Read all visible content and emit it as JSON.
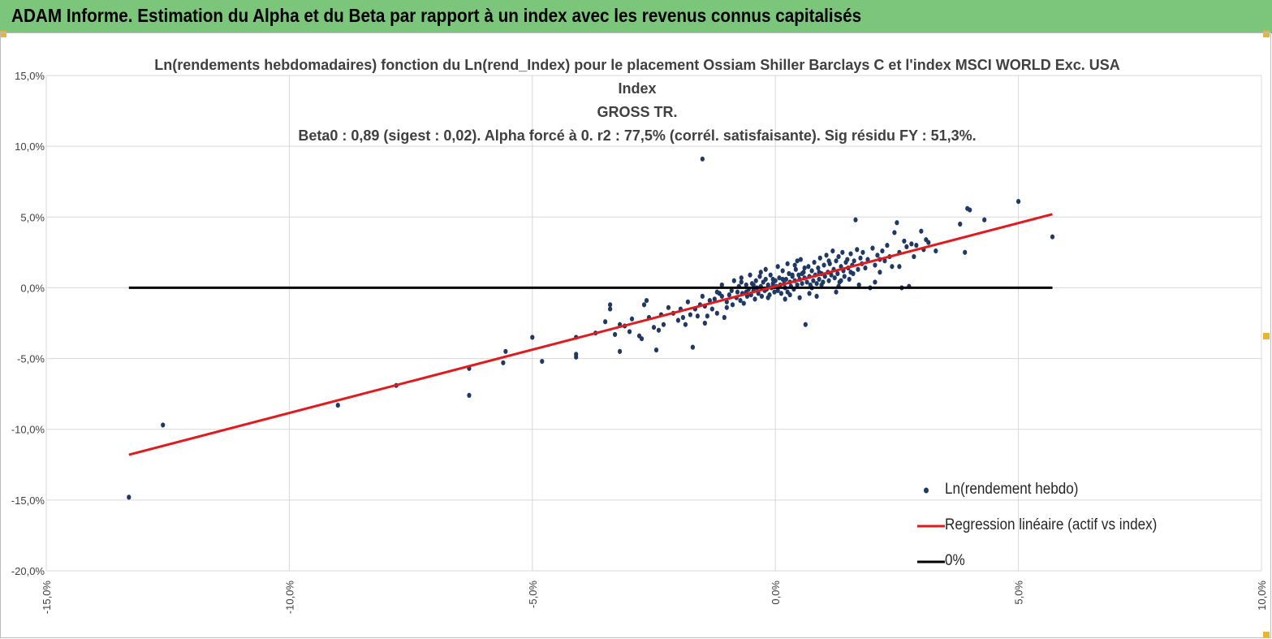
{
  "header": {
    "title": "ADAM Informe. Estimation du Alpha et du Beta par rapport à un index avec les revenus connus capitalisés",
    "banner_color": "#7cc67c"
  },
  "chart_data": {
    "type": "scatter",
    "title_lines": [
      "Ln(rendements hebdomadaires) fonction du Ln(rend_Index) pour le placement Ossiam Shiller Barclays C et l'index MSCI WORLD Exc. USA Index",
      "GROSS TR.",
      "Beta0 : 0,89  (sigest : 0,02).  Alpha forcé à 0. r2 : 77,5% (corrél. satisfaisante). Sig résidu FY : 51,3%."
    ],
    "xlim": [
      -15,
      10
    ],
    "ylim": [
      -20,
      15
    ],
    "x_ticks": [
      -15,
      -10,
      -5,
      0,
      5,
      10
    ],
    "y_ticks": [
      15,
      10,
      5,
      0,
      -5,
      -10,
      -15,
      -20
    ],
    "x_tick_labels": [
      "-15,0%",
      "-10,0%",
      "-5,0%",
      "0,0%",
      "5,0%",
      "10,0%"
    ],
    "y_tick_labels": [
      "15,0%",
      "10,0%",
      "5,0%",
      "0,0%",
      "-5,0%",
      "-10,0%",
      "-15,0%",
      "-20,0%"
    ],
    "grid": true,
    "legend_position": "bottom-right",
    "series": [
      {
        "name": "Ln(rendement hebdo)",
        "kind": "scatter",
        "color": "#1f3864",
        "points": [
          [
            -13.3,
            -14.8
          ],
          [
            -12.6,
            -9.7
          ],
          [
            -9.0,
            -8.3
          ],
          [
            -7.8,
            -6.9
          ],
          [
            -6.3,
            -5.7
          ],
          [
            -6.3,
            -7.6
          ],
          [
            -5.6,
            -5.3
          ],
          [
            -5.55,
            -4.5
          ],
          [
            -5.0,
            -3.5
          ],
          [
            -4.8,
            -5.2
          ],
          [
            -4.1,
            -4.9
          ],
          [
            -4.1,
            -4.7
          ],
          [
            -4.1,
            -3.5
          ],
          [
            -3.7,
            -3.2
          ],
          [
            -3.5,
            -2.4
          ],
          [
            -3.4,
            -1.5
          ],
          [
            -3.4,
            -1.2
          ],
          [
            -3.3,
            -3.3
          ],
          [
            -3.2,
            -2.6
          ],
          [
            -3.1,
            -2.7
          ],
          [
            -3.2,
            -4.5
          ],
          [
            -3.0,
            -3.1
          ],
          [
            -2.95,
            -2.2
          ],
          [
            -2.8,
            -3.4
          ],
          [
            -2.75,
            -3.6
          ],
          [
            -2.7,
            -1.2
          ],
          [
            -2.65,
            -0.9
          ],
          [
            -2.6,
            -2.1
          ],
          [
            -2.5,
            -2.8
          ],
          [
            -2.45,
            -4.4
          ],
          [
            -2.4,
            -3.0
          ],
          [
            -2.35,
            -1.9
          ],
          [
            -2.3,
            -2.6
          ],
          [
            -2.2,
            -1.4
          ],
          [
            -2.1,
            -1.8
          ],
          [
            -2.0,
            -2.3
          ],
          [
            -1.95,
            -1.5
          ],
          [
            -1.9,
            -2.1
          ],
          [
            -1.85,
            -2.6
          ],
          [
            -1.8,
            -1.0
          ],
          [
            -1.75,
            -1.9
          ],
          [
            -1.7,
            -4.2
          ],
          [
            -1.65,
            -1.5
          ],
          [
            -1.6,
            -2.0
          ],
          [
            -1.55,
            -1.2
          ],
          [
            -1.5,
            -0.6
          ],
          [
            -1.45,
            -1.3
          ],
          [
            -1.4,
            -2.0
          ],
          [
            -1.35,
            -0.9
          ],
          [
            -1.3,
            -1.5
          ],
          [
            -1.25,
            -0.8
          ],
          [
            -1.2,
            -1.8
          ],
          [
            -1.15,
            -0.4
          ],
          [
            -1.1,
            -0.6
          ],
          [
            -1.05,
            -2.1
          ],
          [
            -1.0,
            -1.0
          ],
          [
            -1.5,
            9.1
          ],
          [
            -1.45,
            -2.5
          ],
          [
            -1.2,
            -0.3
          ],
          [
            -1.1,
            0.2
          ],
          [
            -1.0,
            -1.4
          ],
          [
            -0.95,
            -0.5
          ],
          [
            -0.9,
            -0.2
          ],
          [
            -0.88,
            -1.2
          ],
          [
            -0.85,
            0.5
          ],
          [
            -0.8,
            -0.7
          ],
          [
            -0.78,
            -0.3
          ],
          [
            -0.75,
            0.1
          ],
          [
            -0.72,
            -0.9
          ],
          [
            -0.7,
            0.7
          ],
          [
            -0.68,
            -0.4
          ],
          [
            -0.65,
            -1.1
          ],
          [
            -0.6,
            0.2
          ],
          [
            -0.58,
            -0.6
          ],
          [
            -0.55,
            -0.1
          ],
          [
            -0.52,
            0.9
          ],
          [
            -0.5,
            -0.5
          ],
          [
            -0.48,
            0.3
          ],
          [
            -0.45,
            -0.2
          ],
          [
            -0.42,
            -0.8
          ],
          [
            -0.4,
            0.5
          ],
          [
            -0.38,
            0.0
          ],
          [
            -0.35,
            -0.4
          ],
          [
            -0.32,
            0.8
          ],
          [
            -0.3,
            0.1
          ],
          [
            -0.28,
            -0.6
          ],
          [
            -0.25,
            0.4
          ],
          [
            -0.22,
            -0.2
          ],
          [
            -0.2,
            0.6
          ],
          [
            -0.18,
            -0.1
          ],
          [
            -0.15,
            0.2
          ],
          [
            -0.12,
            -0.5
          ],
          [
            -0.1,
            0.9
          ],
          [
            -0.08,
            0.0
          ],
          [
            -0.05,
            0.3
          ],
          [
            -0.02,
            -0.3
          ],
          [
            0.0,
            0.5
          ],
          [
            0.02,
            0.1
          ],
          [
            0.05,
            -0.2
          ],
          [
            0.08,
            0.7
          ],
          [
            0.1,
            0.2
          ],
          [
            0.12,
            -0.4
          ],
          [
            0.15,
            1.2
          ],
          [
            0.18,
            0.3
          ],
          [
            0.2,
            0.0
          ],
          [
            0.22,
            0.6
          ],
          [
            0.25,
            -0.3
          ],
          [
            0.28,
            1.0
          ],
          [
            0.3,
            0.4
          ],
          [
            0.32,
            0.1
          ],
          [
            0.35,
            0.8
          ],
          [
            0.38,
            -0.1
          ],
          [
            0.4,
            0.5
          ],
          [
            0.42,
            1.3
          ],
          [
            0.45,
            0.2
          ],
          [
            0.48,
            0.9
          ],
          [
            0.5,
            0.6
          ],
          [
            0.52,
            2.0
          ],
          [
            0.55,
            0.3
          ],
          [
            0.58,
            1.1
          ],
          [
            0.6,
            0.7
          ],
          [
            0.62,
            -2.6
          ],
          [
            0.65,
            0.4
          ],
          [
            0.68,
            1.5
          ],
          [
            0.7,
            0.8
          ],
          [
            0.72,
            0.2
          ],
          [
            0.75,
            1.2
          ],
          [
            0.78,
            0.5
          ],
          [
            0.8,
            1.8
          ],
          [
            0.82,
            0.9
          ],
          [
            0.85,
            0.3
          ],
          [
            0.88,
            1.4
          ],
          [
            0.9,
            0.6
          ],
          [
            0.92,
            2.1
          ],
          [
            0.95,
            1.0
          ],
          [
            0.98,
            0.4
          ],
          [
            1.0,
            1.6
          ],
          [
            1.02,
            0.8
          ],
          [
            1.05,
            2.3
          ],
          [
            1.08,
            1.1
          ],
          [
            1.1,
            0.5
          ],
          [
            1.12,
            1.7
          ],
          [
            1.15,
            0.9
          ],
          [
            1.18,
            2.6
          ],
          [
            1.2,
            1.3
          ],
          [
            1.22,
            0.7
          ],
          [
            1.25,
            1.9
          ],
          [
            1.28,
            1.0
          ],
          [
            1.3,
            2.2
          ],
          [
            1.32,
            0.4
          ],
          [
            1.35,
            1.5
          ],
          [
            1.38,
            2.5
          ],
          [
            1.4,
            1.2
          ],
          [
            1.42,
            0.8
          ],
          [
            1.45,
            1.8
          ],
          [
            1.48,
            2.0
          ],
          [
            1.5,
            1.4
          ],
          [
            1.52,
            0.6
          ],
          [
            1.55,
            2.4
          ],
          [
            1.58,
            1.6
          ],
          [
            1.6,
            1.0
          ],
          [
            1.62,
            1.9
          ],
          [
            1.65,
            4.8
          ],
          [
            1.68,
            2.7
          ],
          [
            1.7,
            1.3
          ],
          [
            1.72,
            0.2
          ],
          [
            1.75,
            2.1
          ],
          [
            1.78,
            1.7
          ],
          [
            1.8,
            2.5
          ],
          [
            1.85,
            1.4
          ],
          [
            1.9,
            2.0
          ],
          [
            1.95,
            0.0
          ],
          [
            2.0,
            2.8
          ],
          [
            2.05,
            1.6
          ],
          [
            2.1,
            2.3
          ],
          [
            2.15,
            1.1
          ],
          [
            2.2,
            2.6
          ],
          [
            2.25,
            1.9
          ],
          [
            2.3,
            3.0
          ],
          [
            2.35,
            2.2
          ],
          [
            2.4,
            1.5
          ],
          [
            2.45,
            3.9
          ],
          [
            2.5,
            4.6
          ],
          [
            2.55,
            2.5
          ],
          [
            2.6,
            0.0
          ],
          [
            2.65,
            3.3
          ],
          [
            2.7,
            2.9
          ],
          [
            2.75,
            0.1
          ],
          [
            2.8,
            3.1
          ],
          [
            2.85,
            2.2
          ],
          [
            2.9,
            3.0
          ],
          [
            3.0,
            4.0
          ],
          [
            3.05,
            2.7
          ],
          [
            3.1,
            3.4
          ],
          [
            3.15,
            3.2
          ],
          [
            3.3,
            2.6
          ],
          [
            3.8,
            4.5
          ],
          [
            3.9,
            2.5
          ],
          [
            3.95,
            5.6
          ],
          [
            4.0,
            5.5
          ],
          [
            4.3,
            4.8
          ],
          [
            5.0,
            6.1
          ],
          [
            5.7,
            3.6
          ],
          [
            0.3,
            -0.5
          ],
          [
            0.5,
            -0.7
          ],
          [
            0.7,
            -0.4
          ],
          [
            0.4,
            1.6
          ],
          [
            0.6,
            1.4
          ],
          [
            0.9,
            1.1
          ],
          [
            1.1,
            1.9
          ],
          [
            -0.3,
            1.1
          ],
          [
            -0.2,
            1.3
          ],
          [
            0.05,
            1.5
          ],
          [
            0.25,
            1.7
          ],
          [
            0.45,
            1.9
          ],
          [
            1.3,
            0.1
          ],
          [
            0.85,
            -0.6
          ],
          [
            0.35,
            0.9
          ],
          [
            0.15,
            0.6
          ],
          [
            -0.05,
            0.6
          ],
          [
            0.55,
            1.0
          ],
          [
            0.75,
            0.0
          ],
          [
            1.35,
            0.5
          ],
          [
            1.55,
            1.1
          ],
          [
            2.15,
            2.0
          ],
          [
            2.55,
            1.5
          ],
          [
            2.05,
            0.4
          ],
          [
            -0.7,
            0.4
          ],
          [
            -0.6,
            -0.3
          ],
          [
            -0.45,
            0.2
          ],
          [
            -0.15,
            -0.7
          ],
          [
            0.2,
            -0.8
          ],
          [
            0.95,
            0.2
          ],
          [
            1.25,
            -0.3
          ]
        ]
      },
      {
        "name": "Regression linéaire (actif vs index)",
        "kind": "line",
        "color": "#e31a1c",
        "points": [
          [
            -13.3,
            -11.8
          ],
          [
            5.7,
            5.2
          ]
        ]
      },
      {
        "name": "0%",
        "kind": "line",
        "color": "#000000",
        "points": [
          [
            -13.3,
            0
          ],
          [
            5.7,
            0
          ]
        ]
      }
    ]
  }
}
